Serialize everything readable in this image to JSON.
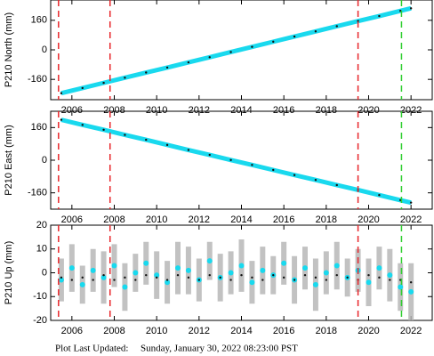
{
  "chart_data": [
    {
      "type": "line",
      "ylabel": "P210 North (mm)",
      "xlim": [
        2005.0,
        2023.0
      ],
      "xticks": [
        2006,
        2008,
        2010,
        2012,
        2014,
        2016,
        2018,
        2020,
        2022
      ],
      "ylim": [
        -270,
        270
      ],
      "yticks": [
        -160,
        0,
        160
      ],
      "vlines": [
        {
          "x": 2005.37,
          "color": "#e8262b"
        },
        {
          "x": 2007.8,
          "color": "#e8262b"
        },
        {
          "x": 2019.5,
          "color": "#e8262b"
        },
        {
          "x": 2021.55,
          "color": "#2fce2f"
        }
      ],
      "x": [
        2005.5,
        2006.5,
        2007.5,
        2008.5,
        2009.5,
        2010.5,
        2011.5,
        2012.5,
        2013.5,
        2014.5,
        2015.5,
        2016.5,
        2017.5,
        2018.5,
        2019.5,
        2020.5,
        2021.5,
        2022.0
      ],
      "series": [
        {
          "color": "#19d9ee",
          "marker_color": "#111111",
          "values": [
            -235,
            -207,
            -179,
            -151,
            -123,
            -96,
            -68,
            -40,
            -12,
            16,
            44,
            72,
            100,
            128,
            156,
            183,
            211,
            225
          ]
        }
      ]
    },
    {
      "type": "line",
      "ylabel": "P210 East (mm)",
      "xlim": [
        2005.0,
        2023.0
      ],
      "xticks": [
        2006,
        2008,
        2010,
        2012,
        2014,
        2016,
        2018,
        2020,
        2022
      ],
      "ylim": [
        -240,
        240
      ],
      "yticks": [
        -160,
        0,
        160
      ],
      "vlines": [
        {
          "x": 2005.37,
          "color": "#e8262b"
        },
        {
          "x": 2007.8,
          "color": "#e8262b"
        },
        {
          "x": 2019.5,
          "color": "#e8262b"
        },
        {
          "x": 2021.55,
          "color": "#2fce2f"
        }
      ],
      "x": [
        2005.5,
        2006.5,
        2007.5,
        2008.5,
        2009.5,
        2010.5,
        2011.5,
        2012.5,
        2013.5,
        2014.5,
        2015.5,
        2016.5,
        2017.5,
        2018.5,
        2019.5,
        2020.5,
        2021.5,
        2022.0
      ],
      "series": [
        {
          "color": "#19d9ee",
          "marker_color": "#111111",
          "values": [
            198,
            173,
            149,
            124,
            100,
            75,
            50,
            26,
            1,
            -23,
            -48,
            -73,
            -97,
            -122,
            -146,
            -171,
            -196,
            -208
          ]
        }
      ]
    },
    {
      "type": "line",
      "ylabel": "P210 Up (mm)",
      "xlim": [
        2005.0,
        2023.0
      ],
      "xticks": [
        2006,
        2008,
        2010,
        2012,
        2014,
        2016,
        2018,
        2020,
        2022
      ],
      "ylim": [
        -20,
        20
      ],
      "yticks": [
        -20,
        -10,
        0,
        10,
        20
      ],
      "vlines": [
        {
          "x": 2005.37,
          "color": "#e8262b"
        },
        {
          "x": 2007.8,
          "color": "#e8262b"
        },
        {
          "x": 2019.5,
          "color": "#e8262b"
        },
        {
          "x": 2021.55,
          "color": "#2fce2f"
        }
      ],
      "x": [
        2005.5,
        2006,
        2006.5,
        2007,
        2007.5,
        2008,
        2008.5,
        2009,
        2009.5,
        2010,
        2010.5,
        2011,
        2011.5,
        2012,
        2012.5,
        2013,
        2013.5,
        2014,
        2014.5,
        2015,
        2015.5,
        2016,
        2016.5,
        2017,
        2017.5,
        2018,
        2018.5,
        2019,
        2019.5,
        2020,
        2020.5,
        2021,
        2021.5,
        2022
      ],
      "series": [
        {
          "style": "errorbar",
          "color": "#19d9ee",
          "error_color": "#b4b4b4",
          "values": [
            -3,
            2,
            -5,
            1,
            -2,
            3,
            -6,
            0,
            4,
            -1,
            -4,
            2,
            1,
            -3,
            5,
            -2,
            0,
            3,
            -4,
            1,
            -1,
            4,
            -3,
            2,
            -5,
            0,
            3,
            -2,
            1,
            -4,
            2,
            -1,
            -6,
            -8
          ],
          "errors": [
            9,
            10,
            8,
            9,
            11,
            9,
            10,
            8,
            9,
            10,
            9,
            11,
            10,
            9,
            8,
            10,
            9,
            11,
            9,
            10,
            8,
            9,
            10,
            9,
            11,
            9,
            10,
            8,
            9,
            10,
            9,
            11,
            10,
            12
          ]
        },
        {
          "style": "dots",
          "color": "#111111",
          "values": [
            -2,
            -3,
            -2,
            -3,
            -1,
            -3,
            -2,
            -3,
            -1,
            -2,
            -3,
            -1,
            -2,
            -3,
            -1,
            -2,
            -3,
            -1,
            -2,
            -3,
            -1,
            -2,
            -3,
            -1,
            -2,
            -3,
            -1,
            -2,
            -3,
            -1,
            -2,
            -3,
            -3,
            -4
          ]
        }
      ]
    }
  ],
  "footer": {
    "label": "Plot Last Updated:",
    "date": "Sunday, January 30, 2022 08:23:00 PST"
  }
}
